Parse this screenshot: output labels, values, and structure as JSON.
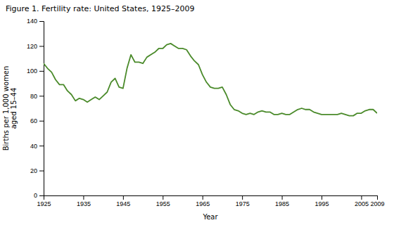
{
  "chart_data": {
    "type": "line",
    "title": "Figure 1. Fertility rate: United States, 1925–2009",
    "xlabel": "Year",
    "ylabel": "Births per 1,000 women\naged 15–44",
    "color": "#4a8a2a",
    "grid": false,
    "x": [
      1925,
      1926,
      1927,
      1928,
      1929,
      1930,
      1931,
      1932,
      1933,
      1934,
      1935,
      1936,
      1937,
      1938,
      1939,
      1940,
      1941,
      1942,
      1943,
      1944,
      1945,
      1946,
      1947,
      1948,
      1949,
      1950,
      1951,
      1952,
      1953,
      1954,
      1955,
      1956,
      1957,
      1958,
      1959,
      1960,
      1961,
      1962,
      1963,
      1964,
      1965,
      1966,
      1967,
      1968,
      1969,
      1970,
      1971,
      1972,
      1973,
      1974,
      1975,
      1976,
      1977,
      1978,
      1979,
      1980,
      1981,
      1982,
      1983,
      1984,
      1985,
      1986,
      1987,
      1988,
      1989,
      1990,
      1991,
      1992,
      1993,
      1994,
      1995,
      1996,
      1997,
      1998,
      1999,
      2000,
      2001,
      2002,
      2003,
      2004,
      2005,
      2006,
      2007,
      2008,
      2009
    ],
    "values": [
      106,
      102,
      99,
      93,
      89,
      89,
      84,
      81,
      76,
      78,
      77,
      75,
      77,
      79,
      77,
      80,
      83,
      91,
      94,
      87,
      86,
      102,
      113,
      107,
      107,
      106,
      111,
      113,
      115,
      118,
      118,
      121,
      122,
      120,
      118,
      118,
      117,
      112,
      108,
      105,
      97,
      91,
      87,
      86,
      86,
      87,
      81,
      73,
      69,
      68,
      66,
      65,
      66,
      65,
      67,
      68,
      67,
      67,
      65,
      65,
      66,
      65,
      65,
      67,
      69,
      70,
      69,
      69,
      67,
      66,
      65,
      65,
      65,
      65,
      65,
      66,
      65,
      64,
      64,
      66,
      66,
      68,
      69,
      69,
      66
    ],
    "xlim": [
      1925,
      2009
    ],
    "ylim": [
      0,
      140
    ],
    "xticks": [
      1925,
      1935,
      1945,
      1955,
      1965,
      1975,
      1985,
      1995,
      2005,
      2009
    ],
    "yticks": [
      0,
      20,
      40,
      60,
      80,
      100,
      120,
      140
    ]
  }
}
